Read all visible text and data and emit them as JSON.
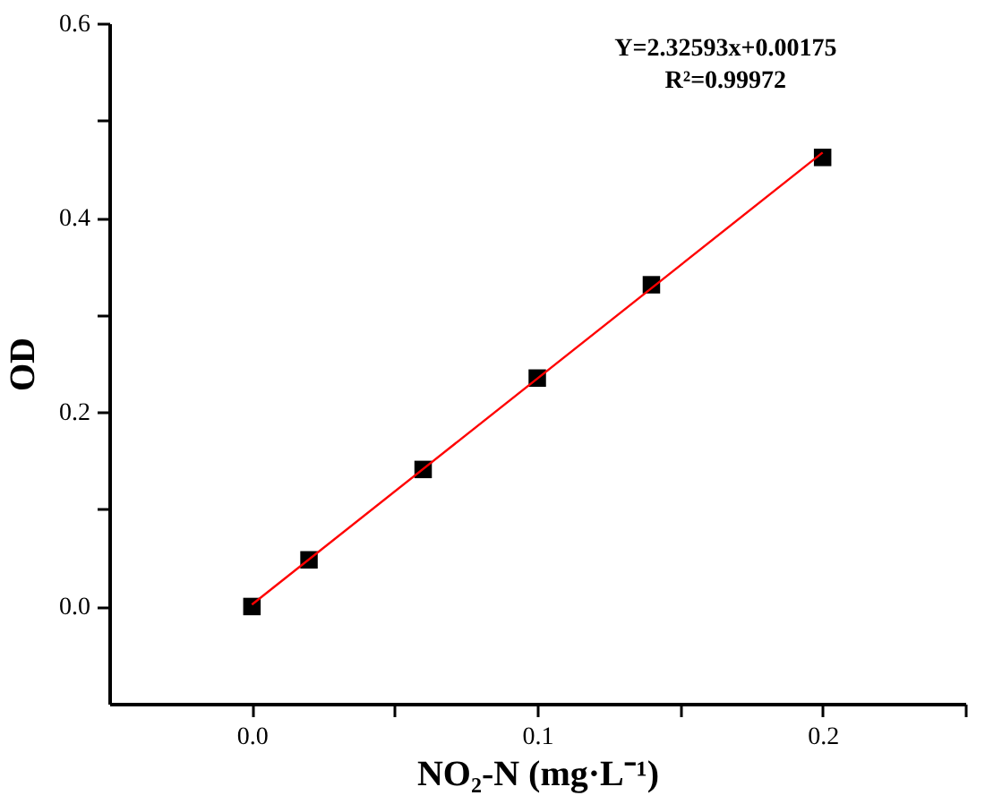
{
  "chart_data": {
    "type": "scatter",
    "xlabel": "NO₂-N (mg·L⁻¹)",
    "ylabel": "OD",
    "annotations": [
      "Y=2.32593x+0.00175",
      "R²=0.99972"
    ],
    "series": [
      {
        "color": "#000000",
        "marker": "square",
        "x": [
          0,
          0.02,
          0.06,
          0.1,
          0.14,
          0.2
        ],
        "values": [
          0,
          0.048,
          0.141,
          0.235,
          0.331,
          0.462
        ]
      },
      {
        "type": "line",
        "color": "#ff0000",
        "line_style": "solid",
        "x": [
          0,
          0.2
        ],
        "values": [
          0.002,
          0.467
        ]
      }
    ],
    "xlim": [
      -0.05,
      0.25
    ],
    "xticks": [
      {
        "value": 0,
        "label": "0.0"
      },
      {
        "value": 0.05,
        "label": null
      },
      {
        "value": 0.1,
        "label": "0.1"
      },
      {
        "value": 0.15,
        "label": null
      },
      {
        "value": 0.2,
        "label": "0.2"
      },
      {
        "value": 0.25,
        "label": null
      }
    ],
    "ylim": [
      -0.1,
      0.6
    ],
    "yticks": [
      {
        "value": 0,
        "label": "0.0"
      },
      {
        "value": 0.1,
        "label": null
      },
      {
        "value": 0.2,
        "label": "0.2"
      },
      {
        "value": 0.3,
        "label": null
      },
      {
        "value": 0.4,
        "label": "0.4"
      },
      {
        "value": 0.5,
        "label": null
      },
      {
        "value": 0.6,
        "label": "0.6"
      }
    ],
    "grid": false
  }
}
